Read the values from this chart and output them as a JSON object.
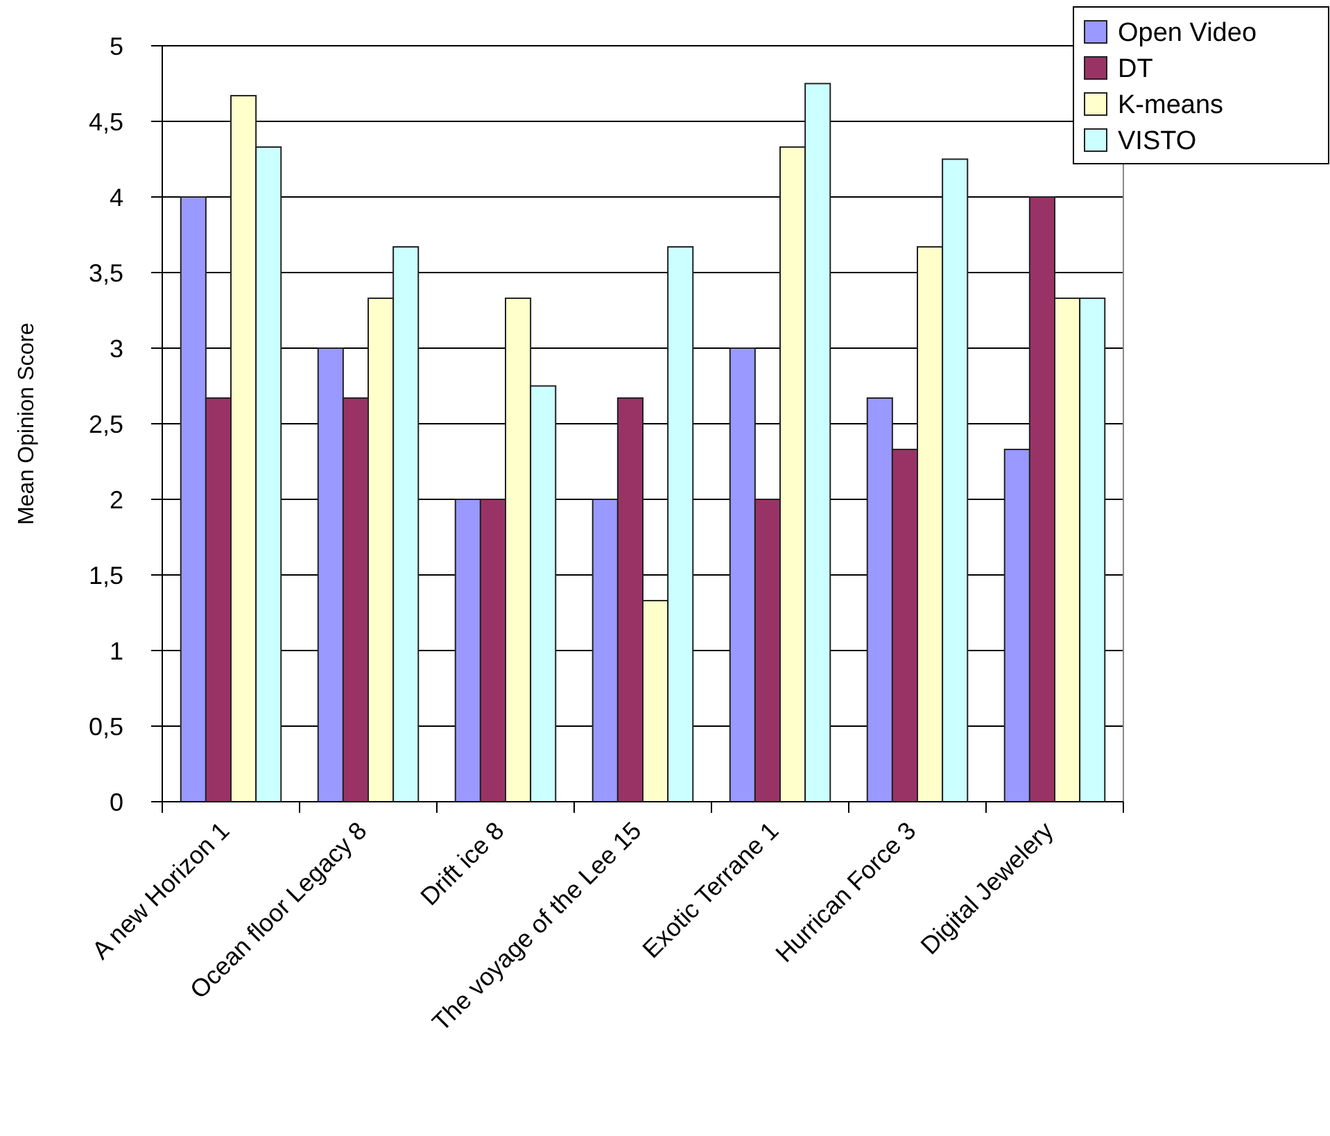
{
  "chart_data": {
    "type": "bar",
    "ylabel": "Mean Opinion Score",
    "categories": [
      "A new Horizon 1",
      "Ocean floor Legacy 8",
      "Drift ice 8",
      "The voyage of the Lee 15",
      "Exotic Terrane 1",
      "Hurrican Force 3",
      "Digital Jewelery"
    ],
    "series": [
      {
        "name": "Open Video",
        "color": "#9999ff",
        "values": [
          4,
          3,
          2,
          2,
          3,
          2.67,
          2.33
        ]
      },
      {
        "name": "DT",
        "color": "#993366",
        "values": [
          2.67,
          2.67,
          2,
          2.67,
          2,
          2.33,
          4
        ]
      },
      {
        "name": "K-means",
        "color": "#ffffcc",
        "values": [
          4.67,
          3.33,
          3.33,
          1.33,
          4.33,
          3.67,
          3.33
        ]
      },
      {
        "name": "VISTO",
        "color": "#ccffff",
        "values": [
          4.33,
          3.67,
          2.75,
          3.67,
          4.75,
          4.25,
          3.33
        ]
      }
    ],
    "ylim": [
      0,
      5
    ],
    "yticks": [
      0,
      {
        "value": 0.5,
        "label": "0,5"
      },
      1,
      {
        "value": 1.5,
        "label": "1,5"
      },
      2,
      {
        "value": 2.5,
        "label": "2,5"
      },
      3,
      {
        "value": 3.5,
        "label": "3,5"
      },
      4,
      {
        "value": 4.5,
        "label": "4,5"
      },
      5
    ],
    "grid": "y",
    "legend": "top right"
  }
}
